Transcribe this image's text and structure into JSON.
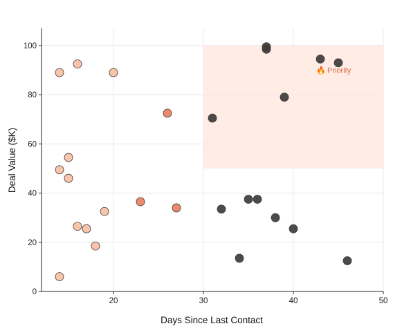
{
  "chart_data": {
    "type": "scatter",
    "title": "",
    "xlabel": "Days Since Last Contact",
    "ylabel": "Deal Value ($K)",
    "xlim": [
      12,
      50
    ],
    "ylim": [
      0,
      107
    ],
    "xticks": [
      20,
      30,
      40,
      50
    ],
    "yticks": [
      0,
      20,
      40,
      60,
      80,
      100
    ],
    "grid": true,
    "legend": "none",
    "colors": {
      "light": "#f9c4a9",
      "medium": "#ec8a6c",
      "dark": "#3f3b3a",
      "marker_edge": "#3a3a3a",
      "highlight_fill": "#fde5dc",
      "annotation_text": "#e06b47",
      "grid": "#e8e8e8",
      "axis": "#222222"
    },
    "highlight_region": {
      "x": [
        30,
        50
      ],
      "y": [
        50,
        100
      ]
    },
    "annotations": [
      {
        "icon": "fire-icon",
        "glyph": "🔥",
        "text": "Priority",
        "x": 43,
        "y": 90
      }
    ],
    "points": [
      {
        "x": 14,
        "y": 89,
        "color": "light"
      },
      {
        "x": 16,
        "y": 92.5,
        "color": "light"
      },
      {
        "x": 20,
        "y": 89,
        "color": "light"
      },
      {
        "x": 15,
        "y": 54.5,
        "color": "light"
      },
      {
        "x": 14,
        "y": 49.5,
        "color": "light"
      },
      {
        "x": 15,
        "y": 46,
        "color": "light"
      },
      {
        "x": 19,
        "y": 32.5,
        "color": "light"
      },
      {
        "x": 16,
        "y": 26.5,
        "color": "light"
      },
      {
        "x": 17,
        "y": 25.5,
        "color": "light"
      },
      {
        "x": 18,
        "y": 18.5,
        "color": "light"
      },
      {
        "x": 14,
        "y": 6,
        "color": "light"
      },
      {
        "x": 26,
        "y": 72.5,
        "color": "medium"
      },
      {
        "x": 23,
        "y": 36.5,
        "color": "medium"
      },
      {
        "x": 27,
        "y": 34,
        "color": "medium"
      },
      {
        "x": 31,
        "y": 70.5,
        "color": "dark"
      },
      {
        "x": 37,
        "y": 99.5,
        "color": "dark"
      },
      {
        "x": 37,
        "y": 98.5,
        "color": "dark"
      },
      {
        "x": 43,
        "y": 94.5,
        "color": "dark"
      },
      {
        "x": 45,
        "y": 93,
        "color": "dark"
      },
      {
        "x": 39,
        "y": 79,
        "color": "dark"
      },
      {
        "x": 32,
        "y": 33.5,
        "color": "dark"
      },
      {
        "x": 35,
        "y": 37.5,
        "color": "dark"
      },
      {
        "x": 36,
        "y": 37.5,
        "color": "dark"
      },
      {
        "x": 38,
        "y": 30,
        "color": "dark"
      },
      {
        "x": 40,
        "y": 25.5,
        "color": "dark"
      },
      {
        "x": 34,
        "y": 13.5,
        "color": "dark"
      },
      {
        "x": 46,
        "y": 12.5,
        "color": "dark"
      }
    ]
  }
}
